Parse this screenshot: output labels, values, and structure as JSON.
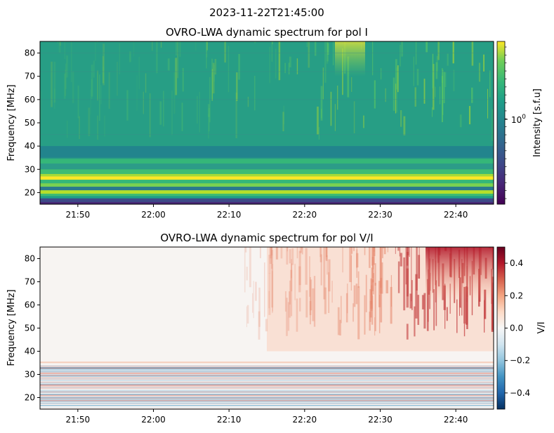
{
  "figure": {
    "suptitle": "2023-11-22T21:45:00"
  },
  "chart_data": [
    {
      "type": "heatmap",
      "title": "OVRO-LWA dynamic spectrum for pol I",
      "xlabel": "",
      "ylabel": "Frequency [MHz]",
      "xlim": [
        "21:45",
        "22:45"
      ],
      "ylim": [
        15,
        85
      ],
      "x_ticks": [
        "21:50",
        "22:00",
        "22:10",
        "22:20",
        "22:30",
        "22:40"
      ],
      "y_ticks": [
        20,
        30,
        40,
        50,
        60,
        70,
        80
      ],
      "colormap": "viridis",
      "colorbar": {
        "label": "Intensity [s.f.u]",
        "scale": "log",
        "tick_label": "10",
        "tick_exponent": "0"
      },
      "features": [
        {
          "description": "bright bands",
          "freq_range_mhz": [
            17,
            35
          ]
        },
        {
          "description": "dark band",
          "freq_range_mhz": [
            15,
            18
          ]
        },
        {
          "description": "brightest bursts",
          "time_range": [
            "22:24",
            "22:28"
          ],
          "freq_range_mhz": [
            70,
            85
          ]
        }
      ]
    },
    {
      "type": "heatmap",
      "title": "OVRO-LWA dynamic spectrum for pol V/I",
      "xlabel": "",
      "ylabel": "Frequency [MHz]",
      "xlim": [
        "21:45",
        "22:45"
      ],
      "ylim": [
        15,
        85
      ],
      "x_ticks": [
        "21:50",
        "22:00",
        "22:10",
        "22:20",
        "22:30",
        "22:40"
      ],
      "y_ticks": [
        20,
        30,
        40,
        50,
        60,
        70,
        80
      ],
      "colormap": "RdBu_r",
      "colorbar": {
        "label": "V/I",
        "range": [
          -0.5,
          0.5
        ],
        "ticks": [
          "0.4",
          "0.2",
          "0.0",
          "−0.2",
          "−0.4"
        ]
      },
      "features": [
        {
          "description": "strong positive V/I",
          "time_range": [
            "22:15",
            "22:45"
          ],
          "freq_range_mhz": [
            40,
            85
          ],
          "peak": 0.5
        },
        {
          "description": "mixed-sign striations",
          "freq_range_mhz": [
            15,
            35
          ]
        }
      ]
    }
  ]
}
